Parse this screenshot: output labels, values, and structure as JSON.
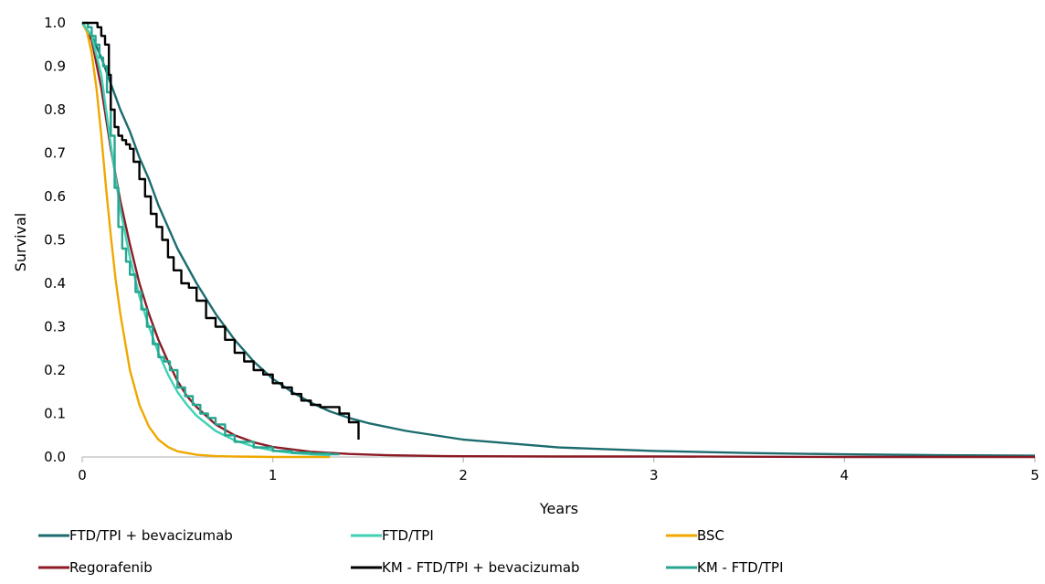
{
  "chart_data": {
    "type": "line",
    "title": "",
    "xlabel": "Years",
    "ylabel": "Survival",
    "xlim": [
      0,
      5
    ],
    "ylim": [
      0,
      1
    ],
    "x_ticks": [
      "0",
      "1",
      "2",
      "3",
      "4",
      "5"
    ],
    "y_ticks": [
      "0.0",
      "0.1",
      "0.2",
      "0.3",
      "0.4",
      "0.5",
      "0.6",
      "0.7",
      "0.8",
      "0.9",
      "1.0"
    ],
    "grid": false,
    "legend_position": "bottom",
    "series": [
      {
        "name": "FTD/TPI + bevacizumab",
        "kind": "model",
        "color": "#1c6b6e",
        "x": [
          0,
          0.05,
          0.1,
          0.15,
          0.2,
          0.25,
          0.3,
          0.35,
          0.4,
          0.5,
          0.6,
          0.7,
          0.8,
          0.9,
          1.0,
          1.1,
          1.2,
          1.3,
          1.4,
          1.5,
          1.7,
          2.0,
          2.5,
          3.0,
          3.5,
          4.0,
          4.5,
          5.0
        ],
        "y": [
          1.0,
          0.97,
          0.92,
          0.86,
          0.8,
          0.75,
          0.69,
          0.64,
          0.58,
          0.48,
          0.4,
          0.33,
          0.27,
          0.22,
          0.18,
          0.15,
          0.125,
          0.105,
          0.09,
          0.078,
          0.06,
          0.04,
          0.022,
          0.014,
          0.009,
          0.006,
          0.004,
          0.003
        ]
      },
      {
        "name": "FTD/TPI",
        "kind": "model",
        "color": "#3fd1b5",
        "x": [
          0,
          0.05,
          0.1,
          0.15,
          0.2,
          0.25,
          0.3,
          0.35,
          0.4,
          0.45,
          0.5,
          0.55,
          0.6,
          0.7,
          0.8,
          0.9,
          1.0,
          1.1,
          1.2,
          1.3
        ],
        "y": [
          1.0,
          0.97,
          0.88,
          0.72,
          0.57,
          0.46,
          0.37,
          0.3,
          0.24,
          0.19,
          0.15,
          0.12,
          0.095,
          0.06,
          0.038,
          0.024,
          0.015,
          0.009,
          0.006,
          0.004
        ]
      },
      {
        "name": "BSC",
        "kind": "model",
        "color": "#f0a800",
        "x": [
          0,
          0.025,
          0.05,
          0.075,
          0.1,
          0.125,
          0.15,
          0.175,
          0.2,
          0.25,
          0.3,
          0.35,
          0.4,
          0.45,
          0.5,
          0.6,
          0.7,
          0.8,
          1.0,
          1.3
        ],
        "y": [
          1.0,
          0.98,
          0.93,
          0.85,
          0.74,
          0.62,
          0.51,
          0.41,
          0.33,
          0.2,
          0.12,
          0.07,
          0.04,
          0.023,
          0.013,
          0.005,
          0.002,
          0.001,
          0.0,
          0.0
        ]
      },
      {
        "name": "Regorafenib",
        "kind": "model",
        "color": "#8b1a24",
        "x": [
          0,
          0.05,
          0.1,
          0.15,
          0.2,
          0.25,
          0.3,
          0.35,
          0.4,
          0.45,
          0.5,
          0.55,
          0.6,
          0.7,
          0.8,
          0.9,
          1.0,
          1.2,
          1.4,
          1.6,
          1.9,
          2.5,
          3.0,
          4.0,
          5.0
        ],
        "y": [
          1.0,
          0.96,
          0.85,
          0.71,
          0.59,
          0.49,
          0.4,
          0.33,
          0.27,
          0.22,
          0.175,
          0.14,
          0.115,
          0.075,
          0.05,
          0.034,
          0.023,
          0.012,
          0.007,
          0.004,
          0.002,
          0.001,
          0.001,
          0.0,
          0.0
        ]
      },
      {
        "name": "KM - FTD/TPI + bevacizumab",
        "kind": "km",
        "color": "#000000",
        "x": [
          0,
          0.06,
          0.08,
          0.1,
          0.12,
          0.14,
          0.15,
          0.17,
          0.19,
          0.21,
          0.23,
          0.25,
          0.27,
          0.3,
          0.33,
          0.36,
          0.39,
          0.42,
          0.45,
          0.48,
          0.52,
          0.56,
          0.6,
          0.65,
          0.7,
          0.75,
          0.8,
          0.85,
          0.9,
          0.95,
          1.0,
          1.05,
          1.1,
          1.15,
          1.2,
          1.25,
          1.35,
          1.4,
          1.45
        ],
        "y": [
          1.0,
          1.0,
          0.99,
          0.97,
          0.95,
          0.88,
          0.8,
          0.76,
          0.74,
          0.73,
          0.72,
          0.71,
          0.68,
          0.64,
          0.6,
          0.56,
          0.53,
          0.5,
          0.46,
          0.43,
          0.4,
          0.39,
          0.36,
          0.32,
          0.3,
          0.27,
          0.24,
          0.22,
          0.2,
          0.19,
          0.17,
          0.16,
          0.145,
          0.13,
          0.12,
          0.115,
          0.1,
          0.08,
          0.04
        ]
      },
      {
        "name": "KM - FTD/TPI",
        "kind": "km",
        "color": "#27a58f",
        "x": [
          0,
          0.03,
          0.05,
          0.07,
          0.09,
          0.11,
          0.13,
          0.15,
          0.17,
          0.19,
          0.21,
          0.23,
          0.25,
          0.28,
          0.31,
          0.34,
          0.37,
          0.4,
          0.43,
          0.46,
          0.5,
          0.54,
          0.58,
          0.62,
          0.66,
          0.7,
          0.75,
          0.8,
          0.9,
          1.0,
          1.1,
          1.2,
          1.3,
          1.35
        ],
        "y": [
          1.0,
          0.99,
          0.97,
          0.95,
          0.92,
          0.9,
          0.84,
          0.74,
          0.62,
          0.53,
          0.48,
          0.45,
          0.42,
          0.38,
          0.34,
          0.3,
          0.26,
          0.23,
          0.22,
          0.2,
          0.16,
          0.14,
          0.12,
          0.1,
          0.09,
          0.075,
          0.05,
          0.035,
          0.022,
          0.014,
          0.01,
          0.008,
          0.006,
          0.006
        ]
      }
    ],
    "legend_rows": [
      [
        "FTD/TPI + bevacizumab",
        "FTD/TPI",
        "BSC"
      ],
      [
        "Regorafenib",
        "KM - FTD/TPI + bevacizumab",
        "KM - FTD/TPI"
      ]
    ]
  }
}
